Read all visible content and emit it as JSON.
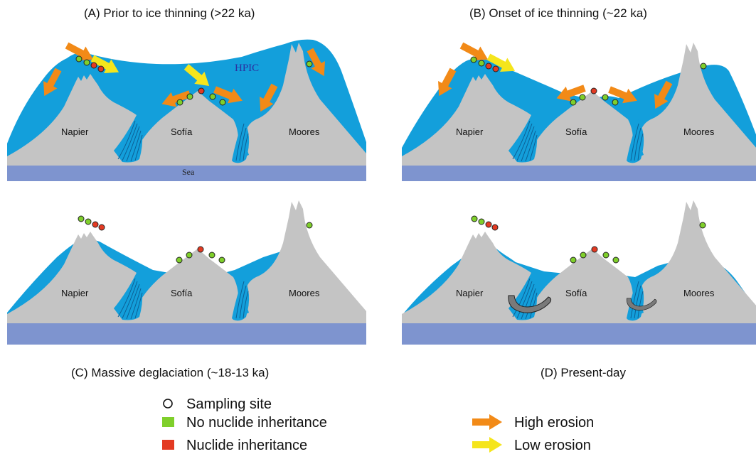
{
  "panels": [
    {
      "id": "A",
      "title": "(A) Prior to ice thinning (>22 ka)"
    },
    {
      "id": "B",
      "title": "(B) Onset of ice thinning (~22 ka)"
    },
    {
      "id": "C",
      "title": "(C) Massive deglaciation (~18-13 ka)"
    },
    {
      "id": "D",
      "title": "(D) Present-day"
    }
  ],
  "mountains": {
    "napier": "Napier",
    "sofia": "Sofía",
    "moores": "Moores"
  },
  "labels": {
    "sea": "Sea",
    "hpic": "HPIC"
  },
  "colors": {
    "ice": "#139fdb",
    "rock": "#c4c4c4",
    "sea": "#7e94cf",
    "no_inheritance": "#7fcf2b",
    "inheritance": "#e33a22",
    "high_erosion": "#f28a17",
    "low_erosion": "#f5e51c"
  },
  "legend": {
    "sampling_site": "Sampling site",
    "no_inheritance": "No nuclide inheritance",
    "inheritance": "Nuclide inheritance",
    "high_erosion": "High erosion",
    "low_erosion": "Low erosion"
  }
}
